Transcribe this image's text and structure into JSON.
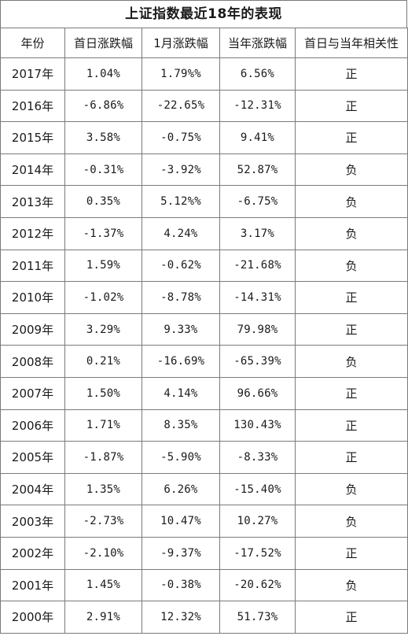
{
  "title": "上证指数最近18年的表现",
  "headers": [
    "年份",
    "首日涨跌幅",
    "1月涨跌幅",
    "当年涨跌幅",
    "首日与当年相关性"
  ],
  "rows": [
    {
      "year": "2017年",
      "first_day": "1.04%",
      "january": "1.79%%",
      "full_year": "6.56%",
      "correlation": "正"
    },
    {
      "year": "2016年",
      "first_day": "-6.86%",
      "january": "-22.65%",
      "full_year": "-12.31%",
      "correlation": "正"
    },
    {
      "year": "2015年",
      "first_day": "3.58%",
      "january": "-0.75%",
      "full_year": "9.41%",
      "correlation": "正"
    },
    {
      "year": "2014年",
      "first_day": "-0.31%",
      "january": "-3.92%",
      "full_year": "52.87%",
      "correlation": "负"
    },
    {
      "year": "2013年",
      "first_day": "0.35%",
      "january": "5.12%%",
      "full_year": "-6.75%",
      "correlation": "负"
    },
    {
      "year": "2012年",
      "first_day": "-1.37%",
      "january": "4.24%",
      "full_year": "3.17%",
      "correlation": "负"
    },
    {
      "year": "2011年",
      "first_day": "1.59%",
      "january": "-0.62%",
      "full_year": "-21.68%",
      "correlation": "负"
    },
    {
      "year": "2010年",
      "first_day": "-1.02%",
      "january": "-8.78%",
      "full_year": "-14.31%",
      "correlation": "正"
    },
    {
      "year": "2009年",
      "first_day": "3.29%",
      "january": "9.33%",
      "full_year": "79.98%",
      "correlation": "正"
    },
    {
      "year": "2008年",
      "first_day": "0.21%",
      "january": "-16.69%",
      "full_year": "-65.39%",
      "correlation": "负"
    },
    {
      "year": "2007年",
      "first_day": "1.50%",
      "january": "4.14%",
      "full_year": "96.66%",
      "correlation": "正"
    },
    {
      "year": "2006年",
      "first_day": "1.71%",
      "january": "8.35%",
      "full_year": "130.43%",
      "correlation": "正"
    },
    {
      "year": "2005年",
      "first_day": "-1.87%",
      "january": "-5.90%",
      "full_year": "-8.33%",
      "correlation": "正"
    },
    {
      "year": "2004年",
      "first_day": "1.35%",
      "january": "6.26%",
      "full_year": "-15.40%",
      "correlation": "负"
    },
    {
      "year": "2003年",
      "first_day": "-2.73%",
      "january": "10.47%",
      "full_year": "10.27%",
      "correlation": "负"
    },
    {
      "year": "2002年",
      "first_day": "-2.10%",
      "january": "-9.37%",
      "full_year": "-17.52%",
      "correlation": "正"
    },
    {
      "year": "2001年",
      "first_day": "1.45%",
      "january": "-0.38%",
      "full_year": "-20.62%",
      "correlation": "负"
    },
    {
      "year": "2000年",
      "first_day": "2.91%",
      "january": "12.32%",
      "full_year": "51.73%",
      "correlation": "正"
    }
  ]
}
